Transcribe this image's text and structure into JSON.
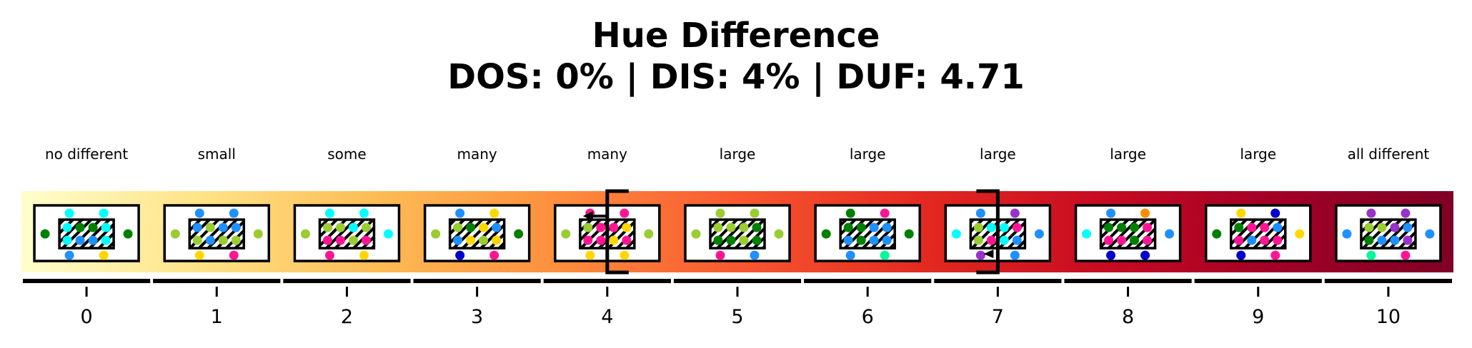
{
  "title": {
    "line1": "Hue Difference",
    "line2": "DOS: 0% | DIS: 4% | DUF: 4.71"
  },
  "gradient_colors": [
    "#fffecc",
    "#fee387",
    "#fdbb55",
    "#fd8e3d",
    "#f85830",
    "#e42b20",
    "#c80c22",
    "#a30026",
    "#800026"
  ],
  "levels": [
    {
      "value": "0",
      "label": "no different",
      "center": [
        "#00ffff",
        "#008000",
        "#008000",
        "#00ffff",
        "#00ffff",
        "#1e90ff",
        "#1e90ff",
        "#00ffff"
      ],
      "top": [
        "#00ffff",
        "#00ffff"
      ],
      "bottom": [
        "#1e90ff",
        "#ffd700"
      ],
      "left": "#008000",
      "right": "#008000"
    },
    {
      "value": "1",
      "label": "small",
      "center": [
        "#1e90ff",
        "#9acd32",
        "#1e90ff",
        "#1e90ff",
        "#9acd32",
        "#1e90ff",
        "#9acd32",
        "#9acd32"
      ],
      "top": [
        "#1e90ff",
        "#1e90ff"
      ],
      "bottom": [
        "#ffd700",
        "#ff1493"
      ],
      "left": "#9acd32",
      "right": "#9acd32"
    },
    {
      "value": "2",
      "label": "some",
      "center": [
        "#9acd32",
        "#9acd32",
        "#00ffff",
        "#9acd32",
        "#ff1493",
        "#ff1493",
        "#9acd32",
        "#ff1493"
      ],
      "top": [
        "#00ffff",
        "#00ffff"
      ],
      "bottom": [
        "#ff1493",
        "#ffd700"
      ],
      "left": "#9acd32",
      "right": "#00ffff"
    },
    {
      "value": "3",
      "label": "many",
      "center": [
        "#9acd32",
        "#008000",
        "#ffd700",
        "#1e90ff",
        "#1e90ff",
        "#ffd700",
        "#9acd32",
        "#ffd700"
      ],
      "top": [
        "#1e90ff",
        "#ffd700"
      ],
      "bottom": [
        "#0000cd",
        "#ff1493"
      ],
      "left": "#9acd32",
      "right": "#008000"
    },
    {
      "value": "4",
      "label": "many",
      "center": [
        "#9acd32",
        "#ff1493",
        "#ff1493",
        "#ffd700",
        "#ff1493",
        "#ff1493",
        "#ffd700",
        "#ff1493"
      ],
      "top": [
        "#ff1493",
        "#ff1493"
      ],
      "bottom": [
        "#ffd700",
        "#ffd700"
      ],
      "left": "#9acd32",
      "right": "#9acd32"
    },
    {
      "value": "5",
      "label": "large",
      "center": [
        "#9acd32",
        "#9acd32",
        "#9acd32",
        "#008000",
        "#008000",
        "#008000",
        "#9acd32",
        "#008000"
      ],
      "top": [
        "#9acd32",
        "#9acd32"
      ],
      "bottom": [
        "#ff1493",
        "#1e90ff"
      ],
      "left": "#9acd32",
      "right": "#9acd32"
    },
    {
      "value": "6",
      "label": "large",
      "center": [
        "#008000",
        "#008000",
        "#1e90ff",
        "#1e90ff",
        "#1e90ff",
        "#008000",
        "#1e90ff",
        "#1e90ff"
      ],
      "top": [
        "#008000",
        "#ff1493"
      ],
      "bottom": [
        "#1e90ff",
        "#00fa9a"
      ],
      "left": "#008000",
      "right": "#008000"
    },
    {
      "value": "7",
      "label": "large",
      "center": [
        "#9acd32",
        "#00ffff",
        "#00ffff",
        "#ff1493",
        "#9acd32",
        "#ff1493",
        "#00ffff",
        "#1e90ff"
      ],
      "top": [
        "#1e90ff",
        "#9932cc"
      ],
      "bottom": [
        "#9932cc",
        "#1e90ff"
      ],
      "left": "#00ffff",
      "right": "#1e90ff"
    },
    {
      "value": "8",
      "label": "large",
      "center": [
        "#008000",
        "#008000",
        "#008000",
        "#ff1493",
        "#ff1493",
        "#ff1493",
        "#008000",
        "#ff1493"
      ],
      "top": [
        "#1e90ff",
        "#ff8c00"
      ],
      "bottom": [
        "#0000cd",
        "#0000cd"
      ],
      "left": "#00ffff",
      "right": "#1e90ff"
    },
    {
      "value": "9",
      "label": "large",
      "center": [
        "#008000",
        "#ff1493",
        "#ff1493",
        "#1e90ff",
        "#ff1493",
        "#1e90ff",
        "#ff1493",
        "#ff1493"
      ],
      "top": [
        "#ffd700",
        "#0000cd"
      ],
      "bottom": [
        "#0000cd",
        "#ff1493"
      ],
      "left": "#008000",
      "right": "#ffd700"
    },
    {
      "value": "10",
      "label": "all different",
      "center": [
        "#9acd32",
        "#9acd32",
        "#9932cc",
        "#1e90ff",
        "#008000",
        "#1e90ff",
        "#1e90ff",
        "#9932cc"
      ],
      "top": [
        "#9932cc",
        "#9932cc"
      ],
      "bottom": [
        "#00fa9a",
        "#ff1493"
      ],
      "left": "#1e90ff",
      "right": "#1e90ff"
    }
  ],
  "markers": {
    "dos_level": "4",
    "dis_level": "7"
  },
  "colors": {
    "frame": "#000000",
    "box_fill": "#ffffff",
    "hatch": "#000000"
  }
}
